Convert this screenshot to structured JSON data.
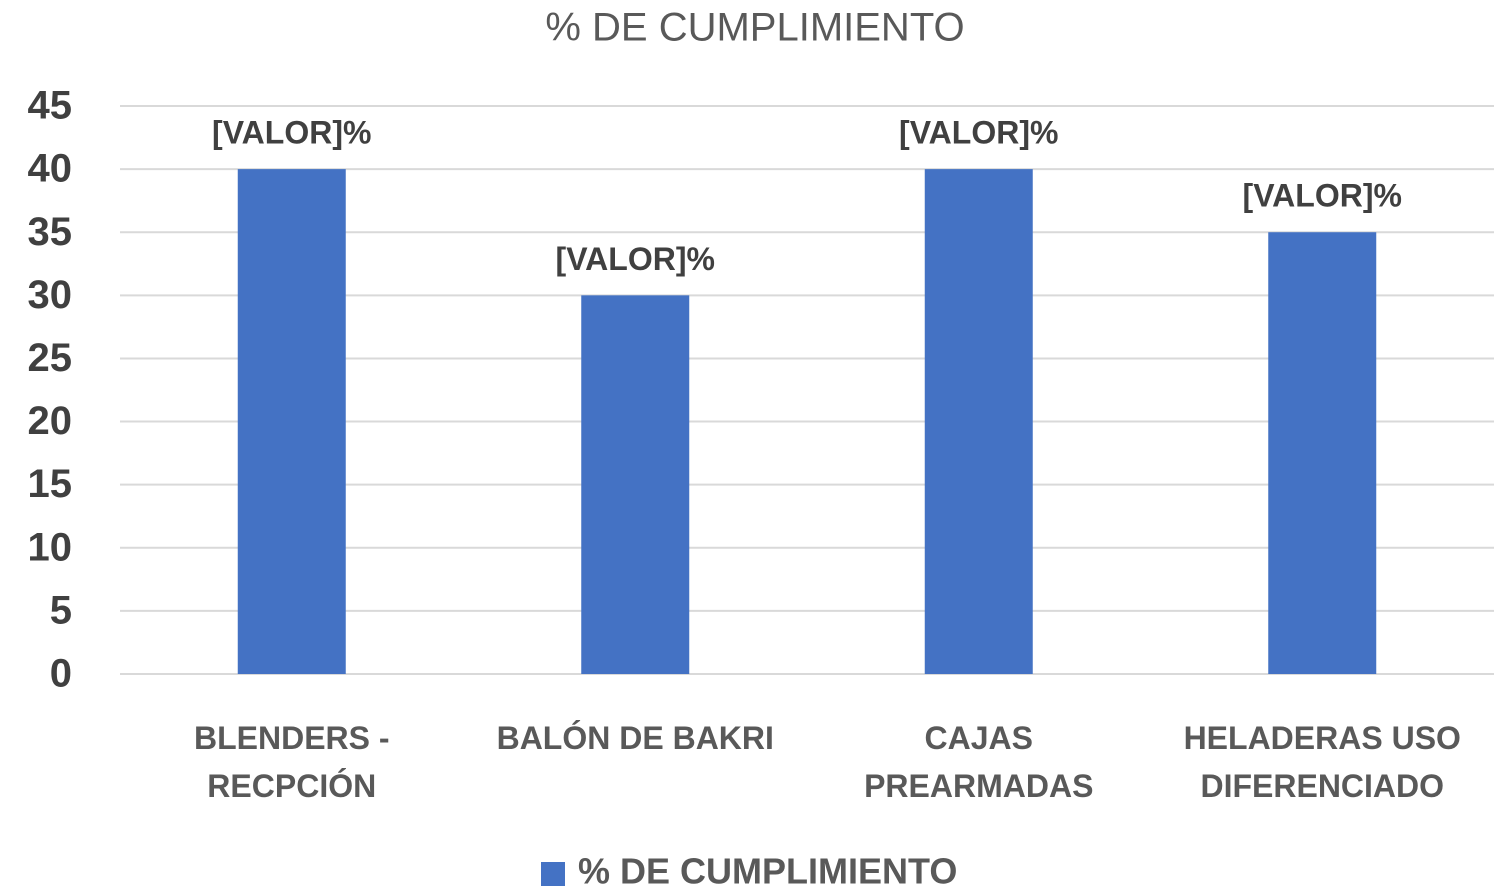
{
  "chart_data": {
    "type": "bar",
    "title": "% DE CUMPLIMIENTO",
    "categories": [
      "BLENDERS - RECPCIÓN",
      "BALÓN DE BAKRI",
      "CAJAS PREARMADAS",
      "HELADERAS USO DIFERENCIADO"
    ],
    "series": [
      {
        "name": "% DE CUMPLIMIENTO",
        "color": "#4472c4",
        "values": [
          40,
          30,
          40,
          35
        ],
        "value_labels": [
          "[VALOR]%",
          "[VALOR]%",
          "[VALOR]%",
          "[VALOR]%"
        ]
      }
    ],
    "ylim": [
      0,
      45
    ],
    "yticks": [
      0,
      5,
      10,
      15,
      20,
      25,
      30,
      35,
      40,
      45
    ],
    "grid": true,
    "legend": "bottom"
  }
}
